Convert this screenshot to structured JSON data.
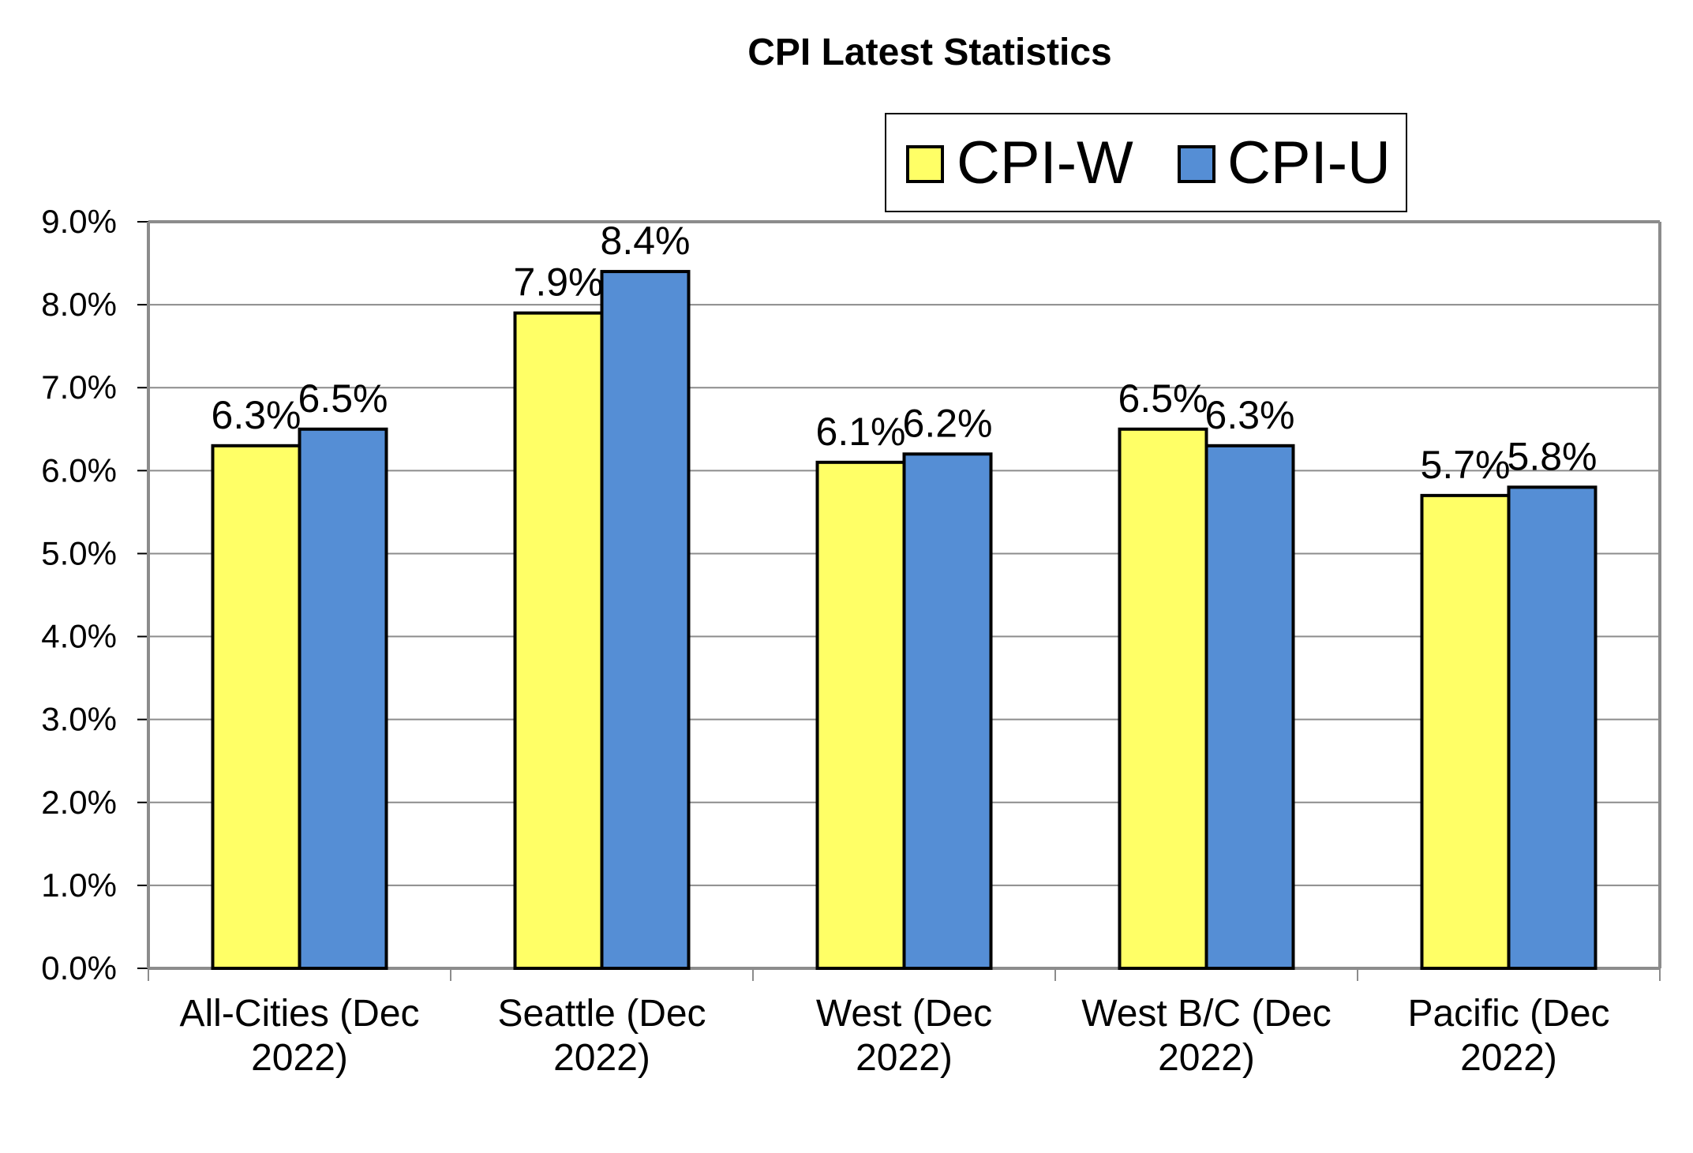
{
  "chart_data": {
    "type": "bar",
    "title": "CPI Latest Statistics",
    "categories": [
      [
        "All-Cities (Dec",
        "2022)"
      ],
      [
        "Seattle (Dec",
        "2022)"
      ],
      [
        "West (Dec",
        "2022)"
      ],
      [
        "West B/C (Dec",
        "2022)"
      ],
      [
        "Pacific (Dec",
        "2022)"
      ]
    ],
    "series": [
      {
        "name": "CPI-W",
        "color": "#FFFF66",
        "values": [
          6.3,
          7.9,
          6.1,
          6.5,
          5.7
        ],
        "labels": [
          "6.3%",
          "7.9%",
          "6.1%",
          "6.5%",
          "5.7%"
        ]
      },
      {
        "name": "CPI-U",
        "color": "#558ED5",
        "values": [
          6.5,
          8.4,
          6.2,
          6.3,
          5.8
        ],
        "labels": [
          "6.5%",
          "8.4%",
          "6.2%",
          "6.3%",
          "5.8%"
        ]
      }
    ],
    "ylim": [
      0,
      9
    ],
    "yticks": [
      "0.0%",
      "1.0%",
      "2.0%",
      "3.0%",
      "4.0%",
      "5.0%",
      "6.0%",
      "7.0%",
      "8.0%",
      "9.0%"
    ],
    "xlabel": "",
    "ylabel": "",
    "grid": true,
    "legend_position": "top-right"
  }
}
